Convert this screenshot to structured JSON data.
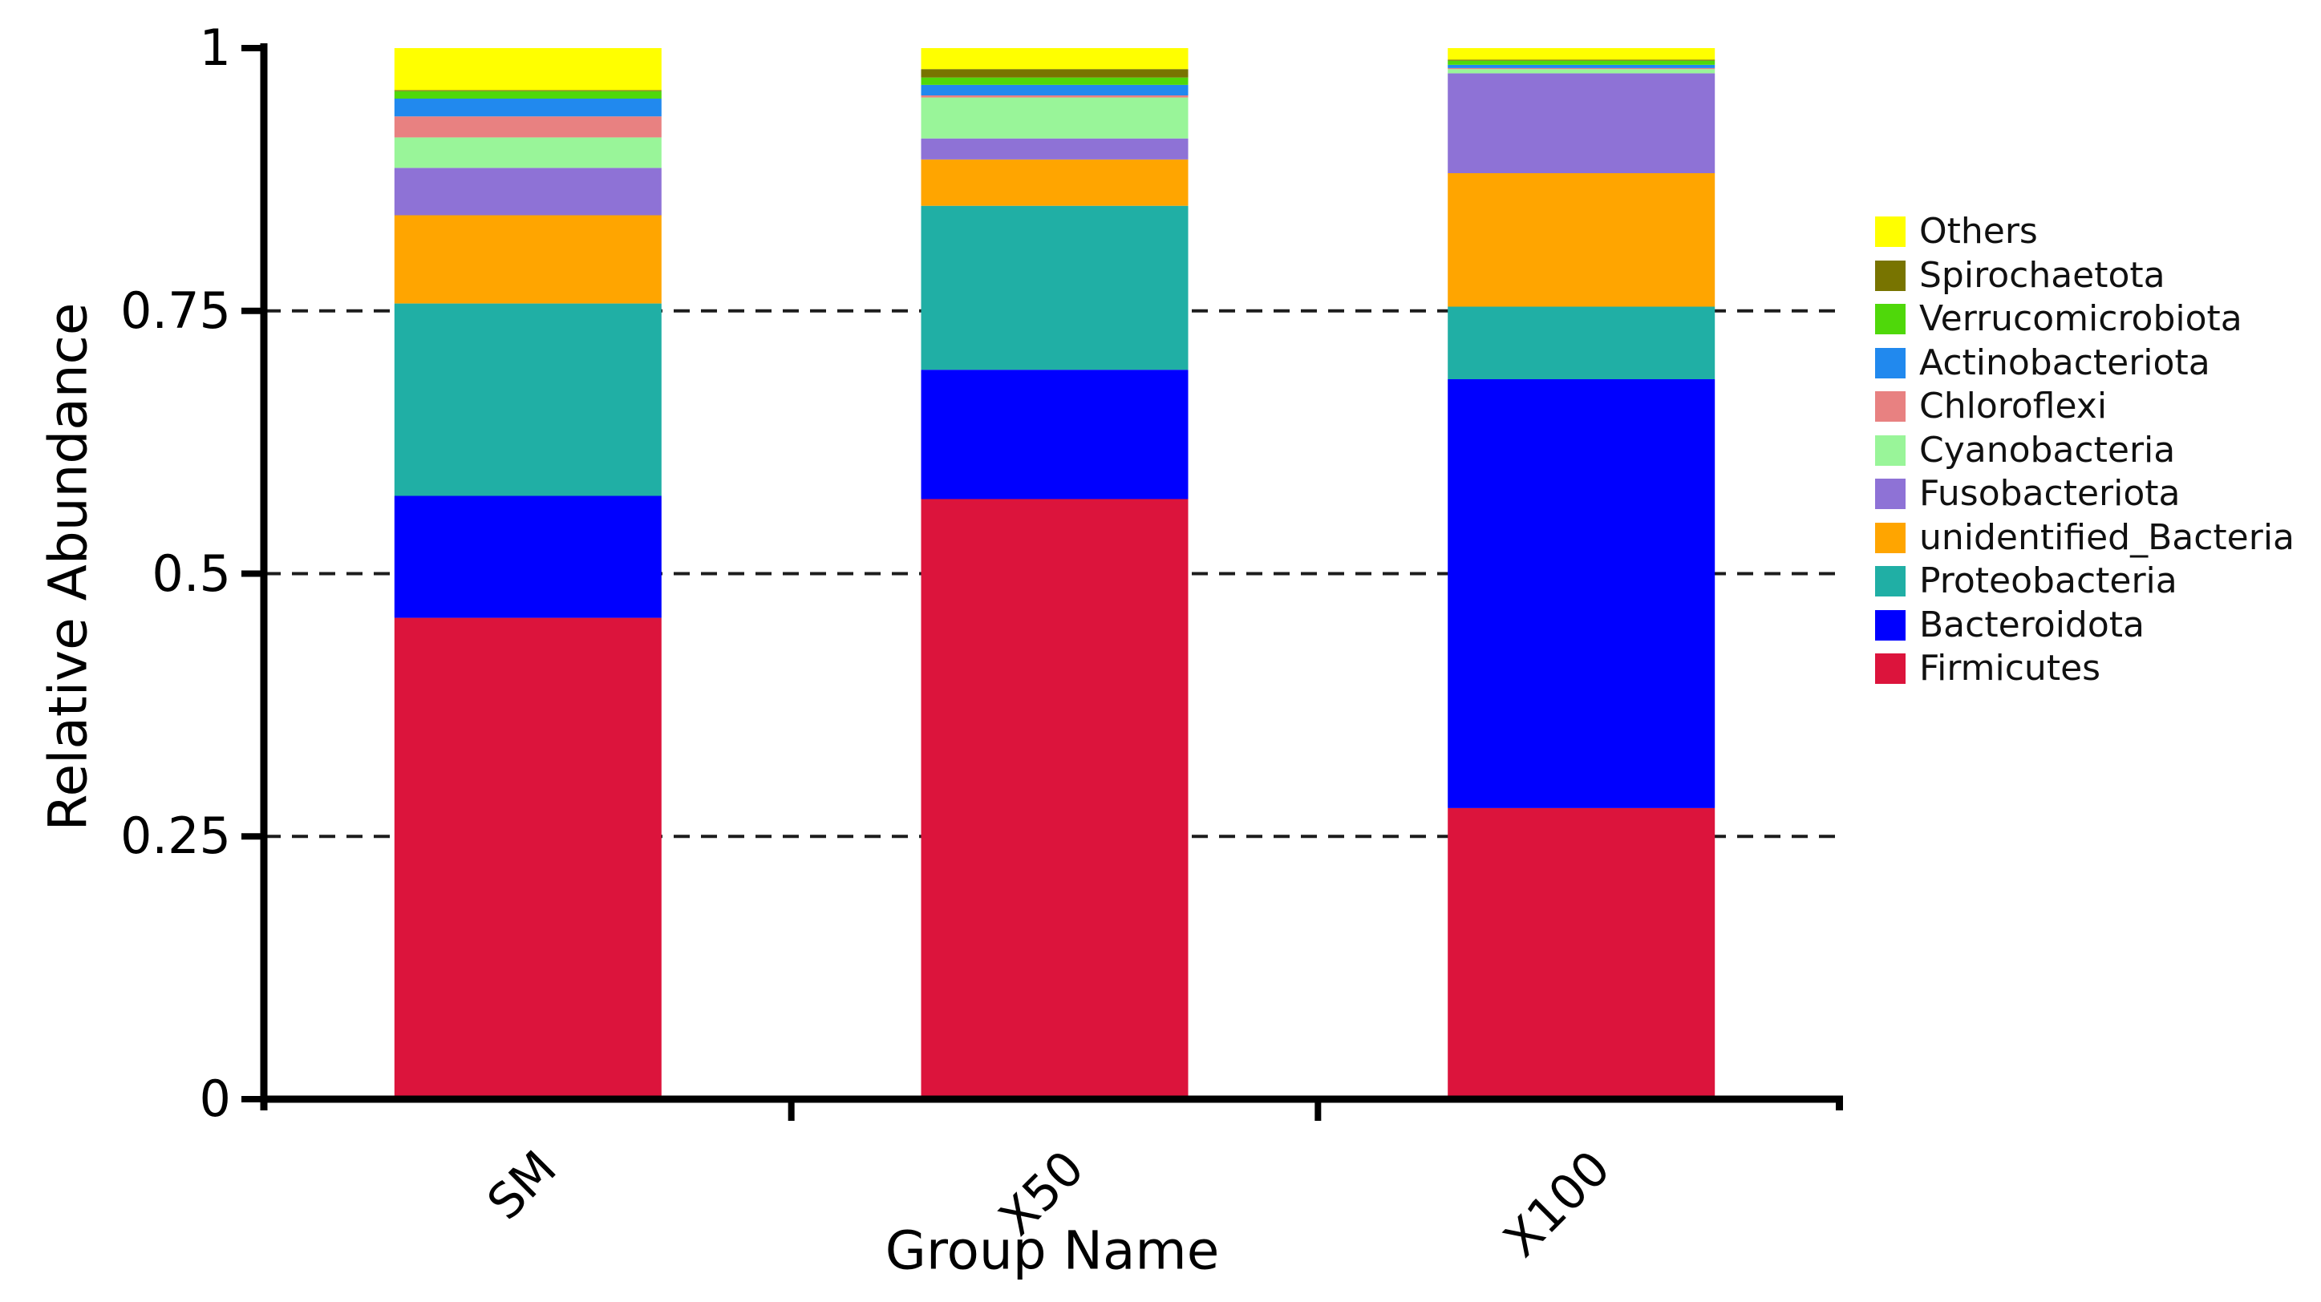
{
  "chart_data": {
    "type": "bar",
    "stacked": true,
    "title": "",
    "xlabel": "Group Name",
    "ylabel": "Relative Abundance",
    "categories": [
      "SM",
      "X50",
      "X100"
    ],
    "ylim": [
      0,
      1
    ],
    "y_ticks": {
      "labels": [
        "1",
        "0.75",
        "0.5",
        "0.25",
        "0"
      ],
      "values": [
        1,
        0.75,
        0.5,
        0.25,
        0
      ]
    },
    "gridlines": {
      "values": [
        0.75,
        0.5,
        0.25
      ],
      "style": "dashed"
    },
    "legend_position": "right-outside",
    "series": [
      {
        "name": "Firmicutes",
        "color": "#DC143C",
        "values": [
          0.458,
          0.571,
          0.277
        ]
      },
      {
        "name": "Bacteroidota",
        "color": "#0000FF",
        "values": [
          0.116,
          0.123,
          0.408
        ]
      },
      {
        "name": "Proteobacteria",
        "color": "#20AFA5",
        "values": [
          0.183,
          0.156,
          0.069
        ]
      },
      {
        "name": "unidentified_Bacteria",
        "color": "#FFA500",
        "values": [
          0.084,
          0.044,
          0.127
        ]
      },
      {
        "name": "Fusobacteriota",
        "color": "#8E72D6",
        "values": [
          0.045,
          0.02,
          0.095
        ]
      },
      {
        "name": "Cyanobacteria",
        "color": "#99F599",
        "values": [
          0.029,
          0.039,
          0.004
        ]
      },
      {
        "name": "Chloroflexi",
        "color": "#E88181",
        "values": [
          0.02,
          0.002,
          0.001
        ]
      },
      {
        "name": "Actinobacteriota",
        "color": "#2189EE",
        "values": [
          0.017,
          0.01,
          0.003
        ]
      },
      {
        "name": "Verrucomicrobiota",
        "color": "#4FD80A",
        "values": [
          0.007,
          0.007,
          0.004
        ]
      },
      {
        "name": "Spirochaetota",
        "color": "#787400",
        "values": [
          0.001,
          0.008,
          0.001
        ]
      },
      {
        "name": "Others",
        "color": "#FFFF00",
        "values": [
          0.04,
          0.02,
          0.011
        ]
      }
    ]
  },
  "legend": {
    "items": [
      {
        "label": "Others",
        "color": "#FFFF00"
      },
      {
        "label": "Spirochaetota",
        "color": "#787400"
      },
      {
        "label": "Verrucomicrobiota",
        "color": "#4FD80A"
      },
      {
        "label": "Actinobacteriota",
        "color": "#2189EE"
      },
      {
        "label": "Chloroflexi",
        "color": "#E88181"
      },
      {
        "label": "Cyanobacteria",
        "color": "#99F599"
      },
      {
        "label": "Fusobacteriota",
        "color": "#8E72D6"
      },
      {
        "label": "unidentified_Bacteria",
        "color": "#FFA500"
      },
      {
        "label": "Proteobacteria",
        "color": "#20AFA5"
      },
      {
        "label": "Bacteroidota",
        "color": "#0000FF"
      },
      {
        "label": "Firmicutes",
        "color": "#DC143C"
      }
    ]
  },
  "colors": {
    "axis": "#000000",
    "grid": "#1c1c1c",
    "background": "#ffffff",
    "text": "#000000"
  }
}
